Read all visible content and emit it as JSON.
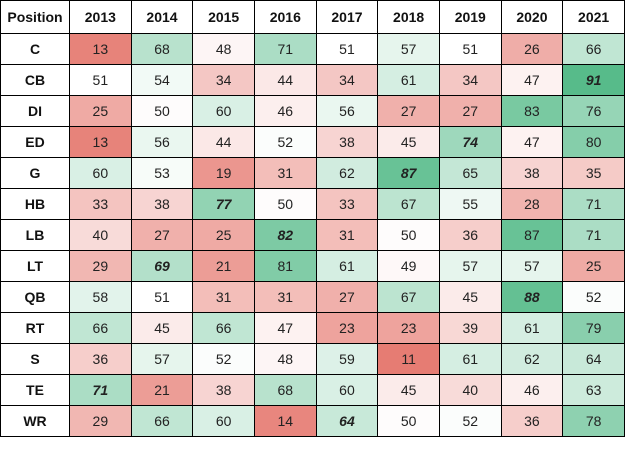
{
  "table": {
    "header": [
      "Position",
      "2013",
      "2014",
      "2015",
      "2016",
      "2017",
      "2018",
      "2019",
      "2020",
      "2021"
    ],
    "rows": [
      [
        "C",
        13,
        68,
        48,
        71,
        51,
        57,
        51,
        26,
        66
      ],
      [
        "CB",
        51,
        54,
        34,
        44,
        34,
        61,
        34,
        47,
        91
      ],
      [
        "DI",
        25,
        50,
        60,
        46,
        56,
        27,
        27,
        83,
        76
      ],
      [
        "ED",
        13,
        56,
        44,
        52,
        38,
        45,
        74,
        47,
        80
      ],
      [
        "G",
        60,
        53,
        19,
        31,
        62,
        87,
        65,
        38,
        35
      ],
      [
        "HB",
        33,
        38,
        77,
        50,
        33,
        67,
        55,
        28,
        71
      ],
      [
        "LB",
        40,
        27,
        25,
        82,
        31,
        50,
        36,
        87,
        71
      ],
      [
        "LT",
        29,
        69,
        21,
        81,
        61,
        49,
        57,
        57,
        25
      ],
      [
        "QB",
        58,
        51,
        31,
        31,
        27,
        67,
        45,
        88,
        52
      ],
      [
        "RT",
        66,
        45,
        66,
        47,
        23,
        23,
        39,
        61,
        79
      ],
      [
        "S",
        36,
        57,
        52,
        48,
        59,
        11,
        61,
        62,
        64
      ],
      [
        "TE",
        71,
        21,
        38,
        68,
        60,
        45,
        40,
        46,
        63
      ],
      [
        "WR",
        29,
        66,
        60,
        14,
        64,
        50,
        52,
        36,
        78
      ]
    ]
  }
}
